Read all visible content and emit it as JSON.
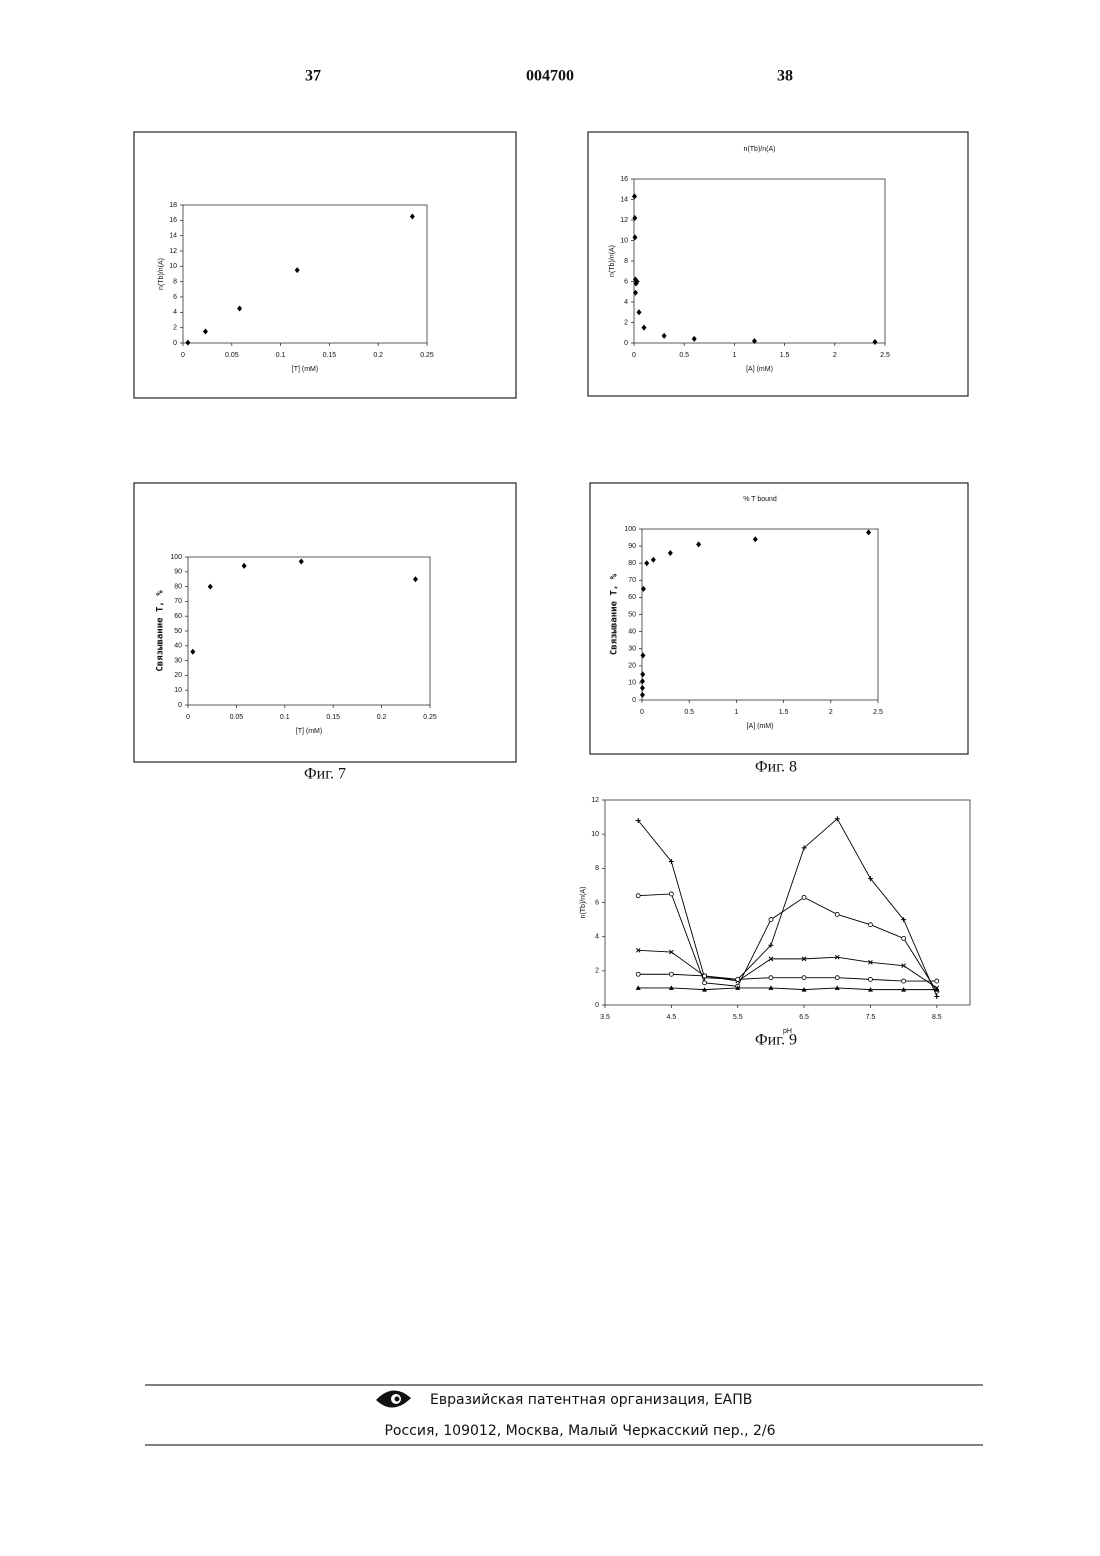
{
  "header": {
    "left": "37",
    "center": "004700",
    "right": "38"
  },
  "chart_data": [
    {
      "type": "scatter",
      "x_label": "[T] (mM)",
      "y_label": "n(Tb)/n(A)",
      "color": "#000000",
      "x": [
        0.005,
        0.023,
        0.058,
        0.117,
        0.235
      ],
      "values": [
        0.05,
        1.5,
        4.5,
        9.5,
        16.5
      ],
      "xlim": [
        0,
        0.25
      ],
      "xticks": [
        0,
        0.05,
        0.1,
        0.15,
        0.2,
        0.25
      ],
      "ylim": [
        0,
        18
      ],
      "yticks": [
        0,
        2,
        4,
        6,
        8,
        10,
        12,
        14,
        16,
        18
      ]
    },
    {
      "type": "scatter",
      "title": "n(Tb)/n(A)",
      "x_label": "[A] (mM)",
      "y_label": "n(Tb)/n(A)",
      "color": "#000000",
      "x": [
        0.005,
        0.008,
        0.01,
        0.015,
        0.02,
        0.03,
        0.015,
        0.05,
        0.1,
        0.3,
        0.6,
        1.2,
        2.4
      ],
      "values": [
        14.3,
        12.2,
        10.3,
        6.2,
        5.8,
        6.0,
        4.9,
        3.0,
        1.5,
        0.7,
        0.4,
        0.2,
        0.1
      ],
      "xlim": [
        0,
        2.5
      ],
      "xticks": [
        0,
        0.5,
        1,
        1.5,
        2,
        2.5
      ],
      "ylim": [
        0,
        16
      ],
      "yticks": [
        0,
        2,
        4,
        6,
        8,
        10,
        12,
        14,
        16
      ]
    },
    {
      "type": "scatter",
      "x_label": "[T] (mM)",
      "y_label": "Связывание Т, %",
      "color": "#000000",
      "x": [
        0.005,
        0.023,
        0.058,
        0.117,
        0.235
      ],
      "values": [
        36,
        80,
        94,
        97,
        85
      ],
      "xlim": [
        0,
        0.25
      ],
      "xticks": [
        0,
        0.05,
        0.1,
        0.15,
        0.2,
        0.25
      ],
      "ylim": [
        0,
        100
      ],
      "yticks": [
        0,
        10,
        20,
        30,
        40,
        50,
        60,
        70,
        80,
        90,
        100
      ]
    },
    {
      "type": "scatter",
      "title": "% T bound",
      "x_label": "[A] (mM)",
      "y_label": "Связывание Т, %",
      "color": "#000000",
      "x": [
        0.005,
        0.005,
        0.005,
        0.008,
        0.01,
        0.015,
        0.05,
        0.12,
        0.3,
        0.6,
        1.2,
        2.4
      ],
      "values": [
        3,
        7,
        11,
        15,
        26,
        65,
        80,
        82,
        86,
        91,
        94,
        98
      ],
      "xlim": [
        0,
        2.5
      ],
      "xticks": [
        0,
        0.5,
        1,
        1.5,
        2,
        2.5
      ],
      "ylim": [
        0,
        100
      ],
      "yticks": [
        0,
        10,
        20,
        30,
        40,
        50,
        60,
        70,
        80,
        90,
        100
      ]
    },
    {
      "type": "line",
      "x_label": "pH",
      "y_label": "n(Tb)/n(A)",
      "x": [
        4,
        4.5,
        5,
        5.5,
        6,
        6.5,
        7,
        7.5,
        8,
        8.5
      ],
      "series": [
        {
          "color": "#000000",
          "marker": "plus",
          "values": [
            10.8,
            8.4,
            1.6,
            1.5,
            3.5,
            9.2,
            10.9,
            7.4,
            5.0,
            0.5
          ]
        },
        {
          "color": "#000000",
          "marker": "circle",
          "values": [
            6.4,
            6.5,
            1.3,
            1.1,
            5.0,
            6.3,
            5.3,
            4.7,
            3.9,
            0.8
          ]
        },
        {
          "color": "#000000",
          "marker": "x",
          "values": [
            3.2,
            3.1,
            1.7,
            1.4,
            2.7,
            2.7,
            2.8,
            2.5,
            2.3,
            1.0
          ]
        },
        {
          "color": "#000000",
          "marker": "circle",
          "values": [
            1.8,
            1.8,
            1.7,
            1.5,
            1.6,
            1.6,
            1.6,
            1.5,
            1.4,
            1.4
          ]
        },
        {
          "color": "#000000",
          "marker": "triangle",
          "values": [
            1.0,
            1.0,
            0.9,
            1.0,
            1.0,
            0.9,
            1.0,
            0.9,
            0.9,
            0.9
          ]
        }
      ],
      "xlim": [
        3.5,
        9
      ],
      "xticks": [
        3.5,
        4.5,
        5.5,
        6.5,
        7.5,
        8.5
      ],
      "ylim": [
        0,
        12
      ],
      "yticks": [
        0,
        2,
        4,
        6,
        8,
        10,
        12
      ]
    }
  ],
  "captions": [
    "Фиг. 7",
    "Фиг. 8",
    "Фиг. 9"
  ],
  "footer": {
    "organization": "Евразийская патентная организация, ЕАПВ",
    "address": "Россия, 109012, Москва, Малый Черкасский пер., 2/6"
  }
}
